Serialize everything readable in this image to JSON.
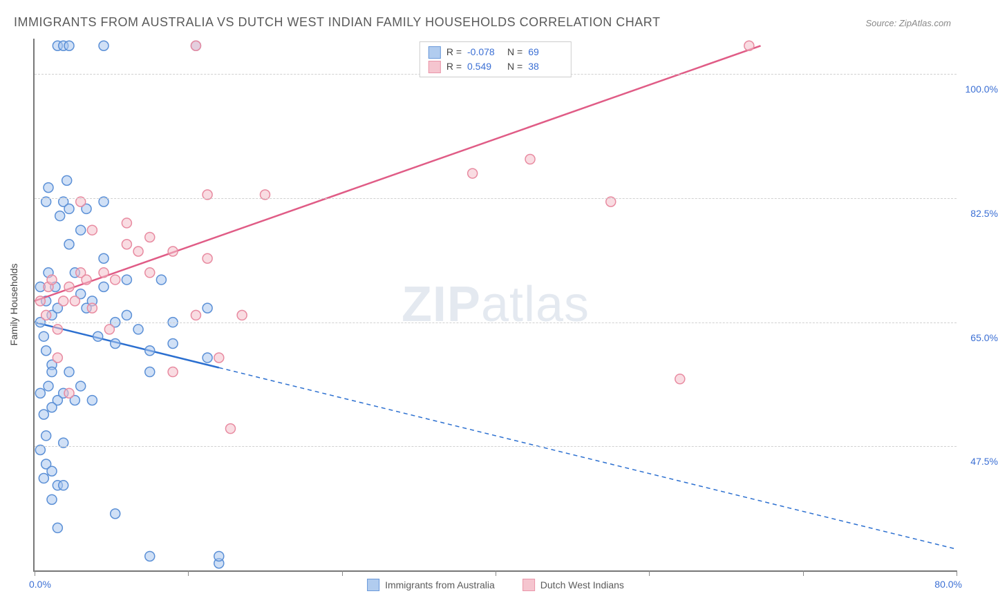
{
  "title": "IMMIGRANTS FROM AUSTRALIA VS DUTCH WEST INDIAN FAMILY HOUSEHOLDS CORRELATION CHART",
  "source": "Source: ZipAtlas.com",
  "watermark_bold": "ZIP",
  "watermark_light": "atlas",
  "y_axis_label": "Family Households",
  "x_min_label": "0.0%",
  "x_max_label": "80.0%",
  "chart": {
    "type": "scatter",
    "xlim": [
      0,
      80
    ],
    "ylim": [
      30,
      105
    ],
    "y_ticks": [
      47.5,
      65.0,
      82.5,
      100.0
    ],
    "y_tick_labels": [
      "47.5%",
      "65.0%",
      "82.5%",
      "100.0%"
    ],
    "x_ticks": [
      0,
      13.33,
      26.67,
      40,
      53.33,
      66.67,
      80
    ],
    "background_color": "#ffffff",
    "grid_color": "#d0d0d0",
    "marker_radius": 7,
    "marker_stroke_width": 1.5,
    "series": [
      {
        "name": "Immigrants from Australia",
        "color_fill": "#a9c7ee",
        "color_stroke": "#5a8fd6",
        "fill_opacity": 0.55,
        "R": "-0.078",
        "N": "69",
        "trend": {
          "x1": 0,
          "y1": 65,
          "x2": 80,
          "y2": 33,
          "solid_until_x": 16
        },
        "trend_color": "#2b6fd0",
        "trend_width": 2.5,
        "points": [
          [
            0.5,
            65
          ],
          [
            0.8,
            63
          ],
          [
            1,
            68
          ],
          [
            1,
            61
          ],
          [
            1.2,
            84
          ],
          [
            1.2,
            72
          ],
          [
            1.5,
            66
          ],
          [
            1.5,
            59
          ],
          [
            1.8,
            70
          ],
          [
            2,
            67
          ],
          [
            2,
            104
          ],
          [
            2.5,
            104
          ],
          [
            2.2,
            80
          ],
          [
            2.5,
            82
          ],
          [
            2.8,
            85
          ],
          [
            3,
            81
          ],
          [
            3,
            76
          ],
          [
            3.5,
            72
          ],
          [
            4,
            78
          ],
          [
            4,
            69
          ],
          [
            4.5,
            67
          ],
          [
            0.5,
            55
          ],
          [
            0.8,
            52
          ],
          [
            1,
            49
          ],
          [
            1.2,
            56
          ],
          [
            1.5,
            58
          ],
          [
            2,
            54
          ],
          [
            2.5,
            55
          ],
          [
            3,
            58
          ],
          [
            3.5,
            54
          ],
          [
            1,
            45
          ],
          [
            1.5,
            44
          ],
          [
            2,
            42
          ],
          [
            2.5,
            42
          ],
          [
            1.5,
            40
          ],
          [
            5,
            68
          ],
          [
            5.5,
            63
          ],
          [
            6,
            70
          ],
          [
            6,
            74
          ],
          [
            7,
            65
          ],
          [
            7,
            62
          ],
          [
            8,
            71
          ],
          [
            8,
            66
          ],
          [
            9,
            64
          ],
          [
            10,
            61
          ],
          [
            10,
            58
          ],
          [
            6,
            82
          ],
          [
            6,
            104
          ],
          [
            3,
            104
          ],
          [
            2,
            36
          ],
          [
            1.5,
            53
          ],
          [
            4,
            56
          ],
          [
            5,
            54
          ],
          [
            0.5,
            47
          ],
          [
            0.8,
            43
          ],
          [
            4.5,
            81
          ],
          [
            11,
            71
          ],
          [
            12,
            65
          ],
          [
            12,
            62
          ],
          [
            10,
            32
          ],
          [
            7,
            38
          ],
          [
            14,
            104
          ],
          [
            15,
            67
          ],
          [
            15,
            60
          ],
          [
            16,
            31
          ],
          [
            16,
            32
          ],
          [
            1,
            82
          ],
          [
            2.5,
            48
          ],
          [
            0.5,
            70
          ]
        ]
      },
      {
        "name": "Dutch West Indians",
        "color_fill": "#f4bfca",
        "color_stroke": "#e88aa0",
        "fill_opacity": 0.55,
        "R": "0.549",
        "N": "38",
        "trend": {
          "x1": 0,
          "y1": 68,
          "x2": 63,
          "y2": 104,
          "solid_until_x": 63
        },
        "trend_color": "#e05c86",
        "trend_width": 2.5,
        "points": [
          [
            0.5,
            68
          ],
          [
            1,
            66
          ],
          [
            1.2,
            70
          ],
          [
            1.5,
            71
          ],
          [
            2,
            64
          ],
          [
            2,
            60
          ],
          [
            2.5,
            68
          ],
          [
            3,
            70
          ],
          [
            3.5,
            68
          ],
          [
            4,
            72
          ],
          [
            4.5,
            71
          ],
          [
            5,
            67
          ],
          [
            5,
            78
          ],
          [
            6,
            72
          ],
          [
            6.5,
            64
          ],
          [
            7,
            71
          ],
          [
            8,
            76
          ],
          [
            8,
            79
          ],
          [
            9,
            75
          ],
          [
            10,
            77
          ],
          [
            10,
            72
          ],
          [
            12,
            75
          ],
          [
            12,
            58
          ],
          [
            14,
            66
          ],
          [
            15,
            74
          ],
          [
            15,
            83
          ],
          [
            16,
            60
          ],
          [
            17,
            50
          ],
          [
            18,
            66
          ],
          [
            20,
            83
          ],
          [
            14,
            104
          ],
          [
            4,
            82
          ],
          [
            38,
            86
          ],
          [
            43,
            88
          ],
          [
            50,
            82
          ],
          [
            56,
            57
          ],
          [
            62,
            104
          ],
          [
            3,
            55
          ]
        ]
      }
    ]
  },
  "legend": {
    "series1_label": "Immigrants from Australia",
    "series2_label": "Dutch West Indians"
  },
  "stat_labels": {
    "R": "R =",
    "N": "N ="
  }
}
